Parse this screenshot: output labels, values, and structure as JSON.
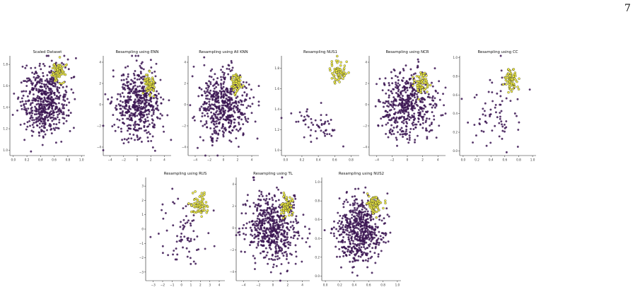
{
  "page_number": "7",
  "colors": {
    "majority": "#3b1552",
    "minority": "#f2ee45",
    "minority_edge": "#2a2a1a"
  },
  "chart_data": [
    {
      "type": "scatter",
      "title": "Scaled Dataset",
      "xticks": [
        "0.0",
        "0.2",
        "0.4",
        "0.6",
        "0.8",
        "1.0"
      ],
      "yticks": [
        "1.0",
        "1.2",
        "1.4",
        "1.6",
        "1.8"
      ],
      "xlim": [
        -0.05,
        1.05
      ],
      "ylim": [
        0.95,
        1.88
      ],
      "clusters": [
        {
          "class": "majority",
          "n": 560,
          "cx": 0.46,
          "cy": 1.47,
          "sx": 0.17,
          "sy": 0.16
        },
        {
          "class": "minority",
          "n": 70,
          "cx": 0.66,
          "cy": 1.73,
          "sx": 0.05,
          "sy": 0.05
        }
      ]
    },
    {
      "type": "scatter",
      "title": "Resampling using ENN",
      "xticks": [
        "−4",
        "−2",
        "0",
        "2",
        "4"
      ],
      "yticks": [
        "−4",
        "−2",
        "0",
        "2",
        "4"
      ],
      "xlim": [
        -5,
        5
      ],
      "ylim": [
        -4.8,
        4.6
      ],
      "clusters": [
        {
          "class": "majority",
          "n": 500,
          "cx": 0.0,
          "cy": 0.0,
          "sx": 1.7,
          "sy": 1.6
        },
        {
          "class": "minority",
          "n": 70,
          "cx": 1.8,
          "cy": 2.0,
          "sx": 0.45,
          "sy": 0.5
        }
      ]
    },
    {
      "type": "scatter",
      "title": "Resampling using All KNN",
      "xticks": [
        "−4",
        "−2",
        "0",
        "2",
        "4"
      ],
      "yticks": [
        "−4",
        "−2",
        "0",
        "2",
        "4"
      ],
      "xlim": [
        -5,
        5
      ],
      "ylim": [
        -4.8,
        4.6
      ],
      "clusters": [
        {
          "class": "majority",
          "n": 500,
          "cx": 0.0,
          "cy": 0.0,
          "sx": 1.7,
          "sy": 1.6
        },
        {
          "class": "minority",
          "n": 70,
          "cx": 1.8,
          "cy": 2.0,
          "sx": 0.45,
          "sy": 0.5
        }
      ]
    },
    {
      "type": "scatter",
      "title": "Resampling NUS1",
      "xticks": [
        "0.0",
        "0.2",
        "0.4",
        "0.6",
        "0.8"
      ],
      "yticks": [
        "1.0",
        "1.2",
        "1.4",
        "1.6",
        "1.8"
      ],
      "xlim": [
        -0.05,
        0.9
      ],
      "ylim": [
        0.95,
        1.92
      ],
      "clusters": [
        {
          "class": "majority",
          "n": 55,
          "cx": 0.37,
          "cy": 1.25,
          "sx": 0.16,
          "sy": 0.08,
          "trend": -0.28
        },
        {
          "class": "minority",
          "n": 70,
          "cx": 0.65,
          "cy": 1.77,
          "sx": 0.05,
          "sy": 0.05
        }
      ]
    },
    {
      "type": "scatter",
      "title": "Resampling using NCR",
      "xticks": [
        "−4",
        "−2",
        "0",
        "2",
        "4"
      ],
      "yticks": [
        "−4",
        "−2",
        "0",
        "2",
        "4"
      ],
      "xlim": [
        -5,
        5
      ],
      "ylim": [
        -4.8,
        4.6
      ],
      "clusters": [
        {
          "class": "majority",
          "n": 500,
          "cx": 0.0,
          "cy": 0.0,
          "sx": 1.7,
          "sy": 1.6
        },
        {
          "class": "minority",
          "n": 70,
          "cx": 1.8,
          "cy": 2.0,
          "sx": 0.45,
          "sy": 0.5
        }
      ]
    },
    {
      "type": "scatter",
      "title": "Resampling using CC",
      "xticks": [
        "0.0",
        "0.2",
        "0.4",
        "0.6",
        "0.8",
        "1.0"
      ],
      "yticks": [
        "0.0",
        "0.2",
        "0.4",
        "0.6",
        "0.8",
        "1.0"
      ],
      "xlim": [
        -0.05,
        1.05
      ],
      "ylim": [
        -0.05,
        1.02
      ],
      "clusters": [
        {
          "class": "majority",
          "n": 75,
          "cx": 0.48,
          "cy": 0.46,
          "sx": 0.22,
          "sy": 0.22
        },
        {
          "class": "minority",
          "n": 70,
          "cx": 0.69,
          "cy": 0.76,
          "sx": 0.05,
          "sy": 0.06
        }
      ]
    },
    {
      "type": "scatter",
      "title": "Resampling using RUS",
      "xticks": [
        "−3",
        "−2",
        "−1",
        "0",
        "1",
        "2",
        "3",
        "4"
      ],
      "yticks": [
        "−3",
        "−2",
        "−1",
        "0",
        "1",
        "2",
        "3"
      ],
      "xlim": [
        -3.8,
        4.6
      ],
      "ylim": [
        -3.6,
        3.6
      ],
      "clusters": [
        {
          "class": "majority",
          "n": 75,
          "cx": 0.2,
          "cy": -0.3,
          "sx": 1.4,
          "sy": 1.3
        },
        {
          "class": "minority",
          "n": 70,
          "cx": 1.9,
          "cy": 1.7,
          "sx": 0.45,
          "sy": 0.45
        }
      ]
    },
    {
      "type": "scatter",
      "title": "Resampling using TL",
      "xticks": [
        "−4",
        "−2",
        "0",
        "2",
        "4"
      ],
      "yticks": [
        "−4",
        "−2",
        "0",
        "2",
        "4"
      ],
      "xlim": [
        -5,
        5
      ],
      "ylim": [
        -4.8,
        4.6
      ],
      "clusters": [
        {
          "class": "majority",
          "n": 560,
          "cx": 0.0,
          "cy": 0.0,
          "sx": 1.7,
          "sy": 1.6
        },
        {
          "class": "minority",
          "n": 70,
          "cx": 1.8,
          "cy": 2.0,
          "sx": 0.45,
          "sy": 0.5
        }
      ]
    },
    {
      "type": "scatter",
      "title": "Resampling using NUS2",
      "xticks": [
        "0.0",
        "0.2",
        "0.4",
        "0.6",
        "0.8",
        "1.0"
      ],
      "yticks": [
        "0.0",
        "0.2",
        "0.4",
        "0.6",
        "0.8",
        "1.0"
      ],
      "xlim": [
        -0.05,
        1.05
      ],
      "ylim": [
        -0.05,
        1.05
      ],
      "clusters": [
        {
          "class": "majority",
          "n": 560,
          "cx": 0.48,
          "cy": 0.47,
          "sx": 0.16,
          "sy": 0.17
        },
        {
          "class": "minority",
          "n": 70,
          "cx": 0.68,
          "cy": 0.76,
          "sx": 0.05,
          "sy": 0.06
        }
      ]
    }
  ]
}
